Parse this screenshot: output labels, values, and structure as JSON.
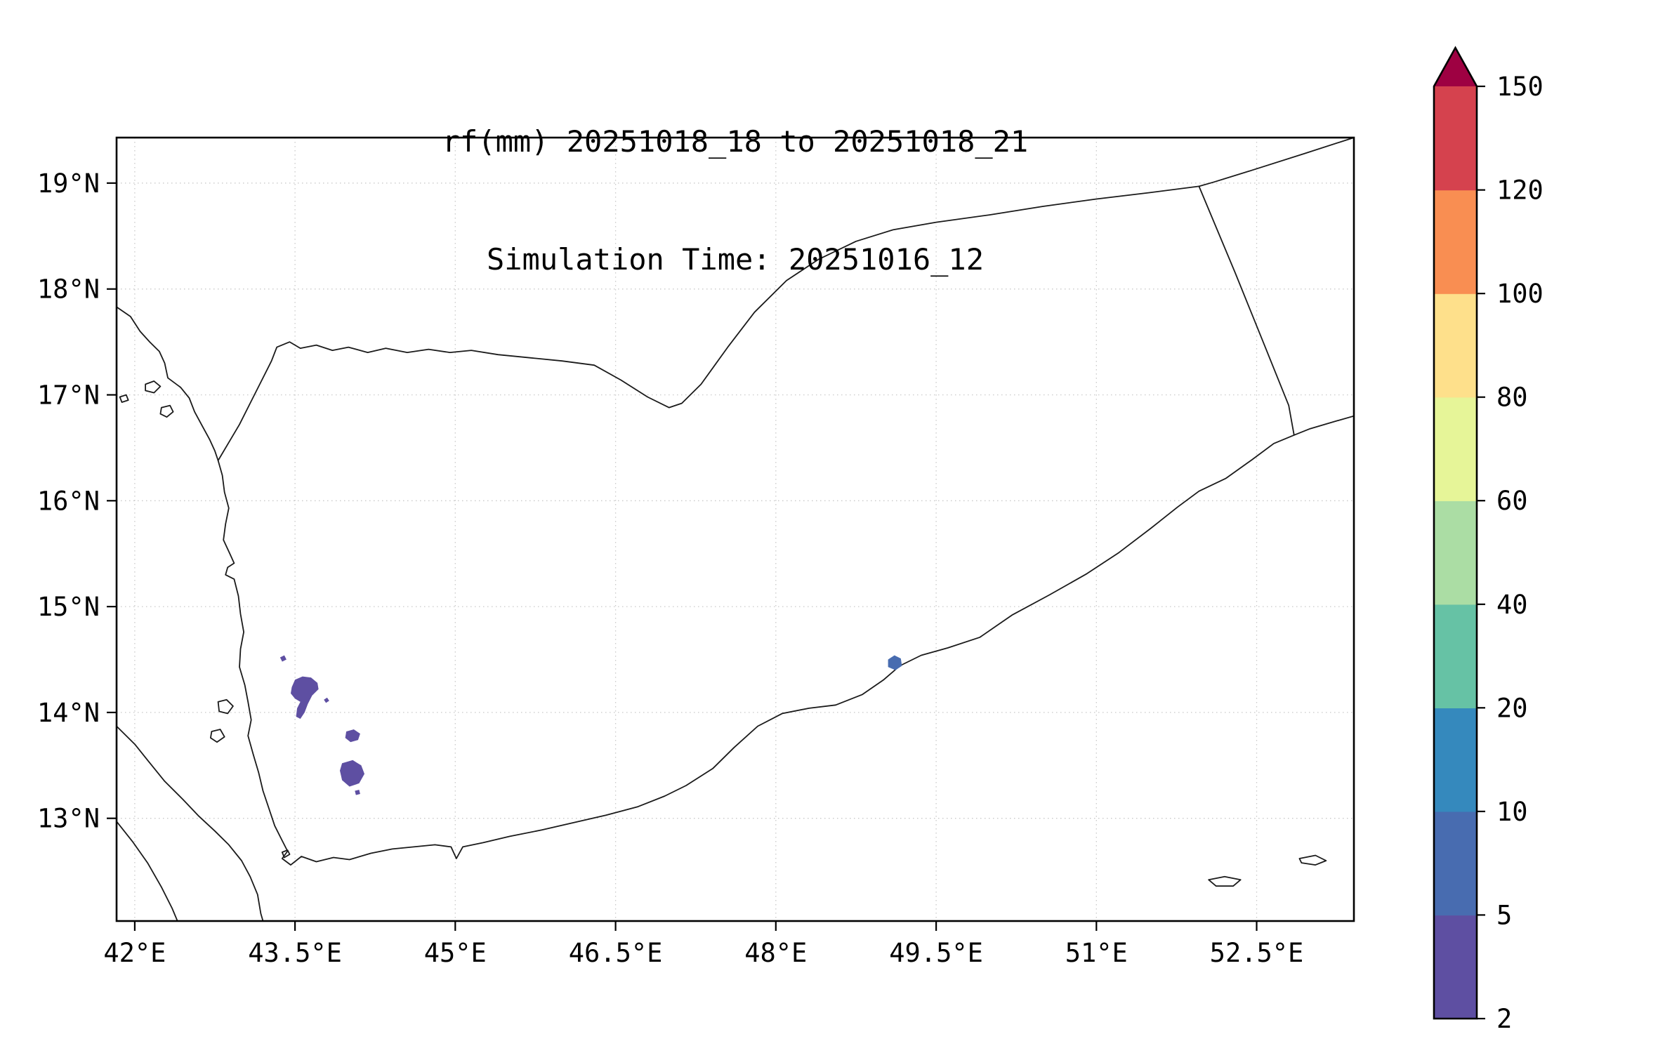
{
  "figure": {
    "title_line1": "rf(mm) 20251018_18 to 20251018_21",
    "title_line2": "Simulation Time: 20251016_12",
    "background_color": "#ffffff",
    "axes_color": "#000000",
    "grid_color": "#c9c9c9"
  },
  "chart_data": {
    "type": "heatmap",
    "title": "rf(mm) 20251018_18 to 20251018_21",
    "subtitle": "Simulation Time: 20251016_12",
    "variable": "rf (mm)",
    "grid": "dotted",
    "x_axis": {
      "range": [
        41.83,
        53.41
      ],
      "ticks": [
        42,
        43.5,
        45,
        46.5,
        48,
        49.5,
        51,
        52.5
      ],
      "tick_labels": [
        "42°E",
        "43.5°E",
        "45°E",
        "46.5°E",
        "48°E",
        "49.5°E",
        "51°E",
        "52.5°E"
      ]
    },
    "y_axis": {
      "range": [
        12.03,
        19.43
      ],
      "ticks": [
        13,
        14,
        15,
        16,
        17,
        18,
        19
      ],
      "tick_labels": [
        "13°N",
        "14°N",
        "15°N",
        "16°N",
        "17°N",
        "18°N",
        "19°N"
      ]
    },
    "colorbar": {
      "levels": [
        2,
        5,
        10,
        20,
        40,
        60,
        80,
        100,
        120,
        150
      ],
      "tick_labels": [
        "2",
        "5",
        "10",
        "20",
        "40",
        "60",
        "80",
        "100",
        "120",
        "150"
      ],
      "segment_colors": [
        "#5e4fa2",
        "#486cb0",
        "#3589bd",
        "#66c2a5",
        "#abdda4",
        "#e6f598",
        "#fee08b",
        "#f98e52",
        "#d5424e"
      ],
      "over_color": "#9e0142",
      "extend": "max"
    },
    "rain_cells": [
      {
        "value_mm": "2-5",
        "color_index": 0,
        "polygon": [
          [
            43.36,
            14.52
          ],
          [
            43.4,
            14.54
          ],
          [
            43.42,
            14.5
          ],
          [
            43.38,
            14.48
          ]
        ]
      },
      {
        "value_mm": "2-5",
        "color_index": 0,
        "polygon": [
          [
            43.47,
            14.24
          ],
          [
            43.5,
            14.31
          ],
          [
            43.57,
            14.34
          ],
          [
            43.65,
            14.33
          ],
          [
            43.71,
            14.28
          ],
          [
            43.72,
            14.22
          ],
          [
            43.66,
            14.16
          ],
          [
            43.62,
            14.08
          ],
          [
            43.59,
            14.0
          ],
          [
            43.55,
            13.94
          ],
          [
            43.51,
            13.96
          ],
          [
            43.52,
            14.04
          ],
          [
            43.55,
            14.1
          ],
          [
            43.5,
            14.13
          ],
          [
            43.46,
            14.18
          ]
        ]
      },
      {
        "value_mm": "2-5",
        "color_index": 0,
        "polygon": [
          [
            43.77,
            14.12
          ],
          [
            43.8,
            14.14
          ],
          [
            43.82,
            14.11
          ],
          [
            43.79,
            14.09
          ]
        ]
      },
      {
        "value_mm": "2-5",
        "color_index": 0,
        "polygon": [
          [
            43.98,
            13.82
          ],
          [
            44.05,
            13.84
          ],
          [
            44.11,
            13.8
          ],
          [
            44.09,
            13.74
          ],
          [
            44.02,
            13.72
          ],
          [
            43.97,
            13.76
          ]
        ]
      },
      {
        "value_mm": "2-5",
        "color_index": 0,
        "polygon": [
          [
            43.94,
            13.52
          ],
          [
            44.04,
            13.55
          ],
          [
            44.12,
            13.5
          ],
          [
            44.15,
            13.42
          ],
          [
            44.1,
            13.33
          ],
          [
            44.01,
            13.3
          ],
          [
            43.94,
            13.36
          ],
          [
            43.92,
            13.45
          ]
        ]
      },
      {
        "value_mm": "2-5",
        "color_index": 0,
        "polygon": [
          [
            44.06,
            13.26
          ],
          [
            44.1,
            13.27
          ],
          [
            44.11,
            13.23
          ],
          [
            44.07,
            13.22
          ]
        ]
      },
      {
        "value_mm": "5-10",
        "color_index": 1,
        "polygon": [
          [
            49.05,
            14.5
          ],
          [
            49.11,
            14.54
          ],
          [
            49.17,
            14.51
          ],
          [
            49.18,
            14.44
          ],
          [
            49.12,
            14.4
          ],
          [
            49.05,
            14.43
          ]
        ]
      }
    ]
  },
  "map": {
    "stroke_color": "#1a1a1a",
    "coastlines": [
      {
        "name": "arabia-coastline",
        "points": [
          [
            41.83,
            17.83
          ],
          [
            41.96,
            17.74
          ],
          [
            42.05,
            17.6
          ],
          [
            42.14,
            17.5
          ],
          [
            42.23,
            17.41
          ],
          [
            42.28,
            17.3
          ],
          [
            42.31,
            17.16
          ],
          [
            42.43,
            17.07
          ],
          [
            42.51,
            16.97
          ],
          [
            42.56,
            16.84
          ],
          [
            42.63,
            16.71
          ],
          [
            42.7,
            16.58
          ],
          [
            42.75,
            16.47
          ],
          [
            42.78,
            16.38
          ],
          [
            42.82,
            16.24
          ],
          [
            42.84,
            16.08
          ],
          [
            42.88,
            15.93
          ],
          [
            42.85,
            15.78
          ],
          [
            42.83,
            15.63
          ],
          [
            42.89,
            15.5
          ],
          [
            42.93,
            15.41
          ],
          [
            42.87,
            15.37
          ],
          [
            42.85,
            15.3
          ],
          [
            42.93,
            15.26
          ],
          [
            42.97,
            15.1
          ],
          [
            42.99,
            14.93
          ],
          [
            43.02,
            14.76
          ],
          [
            42.99,
            14.6
          ],
          [
            42.98,
            14.43
          ],
          [
            43.03,
            14.26
          ],
          [
            43.06,
            14.1
          ],
          [
            43.09,
            13.93
          ],
          [
            43.06,
            13.78
          ],
          [
            43.11,
            13.6
          ],
          [
            43.16,
            13.43
          ],
          [
            43.2,
            13.26
          ],
          [
            43.26,
            13.08
          ],
          [
            43.31,
            12.93
          ],
          [
            43.38,
            12.79
          ],
          [
            43.43,
            12.69
          ],
          [
            43.38,
            12.62
          ],
          [
            43.46,
            12.56
          ],
          [
            43.56,
            12.64
          ],
          [
            43.7,
            12.59
          ],
          [
            43.86,
            12.63
          ],
          [
            44.01,
            12.61
          ],
          [
            44.21,
            12.67
          ],
          [
            44.41,
            12.71
          ],
          [
            44.61,
            12.73
          ],
          [
            44.81,
            12.75
          ],
          [
            44.96,
            12.73
          ],
          [
            45.01,
            12.62
          ],
          [
            45.07,
            12.73
          ],
          [
            45.26,
            12.77
          ],
          [
            45.51,
            12.83
          ],
          [
            45.81,
            12.89
          ],
          [
            46.11,
            12.96
          ],
          [
            46.41,
            13.03
          ],
          [
            46.71,
            13.11
          ],
          [
            46.96,
            13.21
          ],
          [
            47.16,
            13.31
          ],
          [
            47.41,
            13.47
          ],
          [
            47.61,
            13.67
          ],
          [
            47.83,
            13.87
          ],
          [
            48.06,
            13.99
          ],
          [
            48.31,
            14.04
          ],
          [
            48.56,
            14.07
          ],
          [
            48.81,
            14.17
          ],
          [
            49.01,
            14.31
          ],
          [
            49.16,
            14.44
          ],
          [
            49.36,
            14.54
          ],
          [
            49.61,
            14.61
          ],
          [
            49.91,
            14.71
          ],
          [
            50.21,
            14.92
          ],
          [
            50.56,
            15.11
          ],
          [
            50.91,
            15.31
          ],
          [
            51.21,
            15.51
          ],
          [
            51.51,
            15.74
          ],
          [
            51.76,
            15.94
          ],
          [
            51.96,
            16.09
          ],
          [
            52.21,
            16.21
          ],
          [
            52.46,
            16.39
          ],
          [
            52.66,
            16.54
          ],
          [
            52.85,
            16.62
          ],
          [
            53.0,
            16.68
          ],
          [
            53.2,
            16.74
          ],
          [
            53.41,
            16.8
          ]
        ]
      },
      {
        "name": "saudi-yemen-border",
        "points": [
          [
            42.78,
            16.38
          ],
          [
            42.88,
            16.55
          ],
          [
            42.98,
            16.72
          ],
          [
            43.08,
            16.92
          ],
          [
            43.18,
            17.12
          ],
          [
            43.28,
            17.32
          ],
          [
            43.33,
            17.45
          ],
          [
            43.45,
            17.5
          ],
          [
            43.55,
            17.44
          ],
          [
            43.7,
            17.47
          ],
          [
            43.85,
            17.42
          ],
          [
            44.0,
            17.45
          ],
          [
            44.18,
            17.4
          ],
          [
            44.35,
            17.44
          ],
          [
            44.55,
            17.4
          ],
          [
            44.75,
            17.43
          ],
          [
            44.95,
            17.4
          ],
          [
            45.15,
            17.42
          ],
          [
            45.4,
            17.38
          ],
          [
            45.7,
            17.35
          ],
          [
            46.0,
            17.32
          ],
          [
            46.3,
            17.28
          ],
          [
            46.55,
            17.14
          ],
          [
            46.8,
            16.98
          ],
          [
            47.0,
            16.88
          ],
          [
            47.12,
            16.92
          ],
          [
            47.3,
            17.1
          ],
          [
            47.55,
            17.45
          ],
          [
            47.8,
            17.78
          ],
          [
            48.1,
            18.08
          ],
          [
            48.4,
            18.28
          ],
          [
            48.75,
            18.45
          ],
          [
            49.1,
            18.56
          ],
          [
            49.5,
            18.63
          ],
          [
            50.0,
            18.7
          ],
          [
            50.5,
            18.78
          ],
          [
            51.0,
            18.85
          ],
          [
            51.5,
            18.91
          ],
          [
            51.96,
            18.97
          ]
        ]
      },
      {
        "name": "oman-yemen-border",
        "points": [
          [
            51.96,
            18.97
          ],
          [
            52.3,
            18.15
          ],
          [
            52.6,
            17.4
          ],
          [
            52.8,
            16.9
          ],
          [
            52.85,
            16.62
          ]
        ]
      },
      {
        "name": "oman-saudi-line",
        "points": [
          [
            53.41,
            19.43
          ],
          [
            52.95,
            19.28
          ],
          [
            52.45,
            19.12
          ],
          [
            52.1,
            19.01
          ],
          [
            51.96,
            18.97
          ]
        ]
      },
      {
        "name": "african-coastline",
        "points": [
          [
            41.83,
            13.87
          ],
          [
            42.0,
            13.7
          ],
          [
            42.12,
            13.55
          ],
          [
            42.28,
            13.35
          ],
          [
            42.45,
            13.18
          ],
          [
            42.6,
            13.02
          ],
          [
            42.75,
            12.88
          ],
          [
            42.88,
            12.75
          ],
          [
            43.0,
            12.6
          ],
          [
            43.08,
            12.45
          ],
          [
            43.15,
            12.28
          ],
          [
            43.18,
            12.1
          ],
          [
            43.2,
            12.03
          ]
        ]
      },
      {
        "name": "african-coastline-2",
        "points": [
          [
            41.83,
            12.97
          ],
          [
            41.98,
            12.78
          ],
          [
            42.12,
            12.58
          ],
          [
            42.25,
            12.35
          ],
          [
            42.35,
            12.15
          ],
          [
            42.4,
            12.03
          ]
        ]
      }
    ],
    "islands": [
      {
        "name": "farasan-island-1",
        "points": [
          [
            42.1,
            17.1
          ],
          [
            42.18,
            17.13
          ],
          [
            42.24,
            17.08
          ],
          [
            42.18,
            17.02
          ],
          [
            42.1,
            17.04
          ]
        ]
      },
      {
        "name": "farasan-island-2",
        "points": [
          [
            42.25,
            16.88
          ],
          [
            42.33,
            16.9
          ],
          [
            42.36,
            16.84
          ],
          [
            42.3,
            16.79
          ],
          [
            42.24,
            16.82
          ]
        ]
      },
      {
        "name": "farasan-island-3",
        "points": [
          [
            41.86,
            16.98
          ],
          [
            41.92,
            17.0
          ],
          [
            41.94,
            16.95
          ],
          [
            41.88,
            16.93
          ]
        ]
      },
      {
        "name": "zuqar-island",
        "points": [
          [
            42.78,
            14.1
          ],
          [
            42.86,
            14.12
          ],
          [
            42.92,
            14.06
          ],
          [
            42.87,
            13.99
          ],
          [
            42.79,
            14.01
          ]
        ]
      },
      {
        "name": "hanish-island",
        "points": [
          [
            42.72,
            13.82
          ],
          [
            42.8,
            13.84
          ],
          [
            42.84,
            13.77
          ],
          [
            42.77,
            13.72
          ],
          [
            42.71,
            13.76
          ]
        ]
      },
      {
        "name": "perim-island",
        "points": [
          [
            43.38,
            12.68
          ],
          [
            43.43,
            12.7
          ],
          [
            43.45,
            12.66
          ],
          [
            43.4,
            12.63
          ]
        ]
      },
      {
        "name": "abd-al-kuri-island",
        "points": [
          [
            52.05,
            12.42
          ],
          [
            52.2,
            12.45
          ],
          [
            52.35,
            12.42
          ],
          [
            52.28,
            12.36
          ],
          [
            52.12,
            12.36
          ]
        ]
      },
      {
        "name": "socotra-west-tip",
        "points": [
          [
            52.9,
            12.62
          ],
          [
            53.05,
            12.65
          ],
          [
            53.15,
            12.6
          ],
          [
            53.05,
            12.56
          ],
          [
            52.92,
            12.58
          ]
        ]
      }
    ]
  }
}
